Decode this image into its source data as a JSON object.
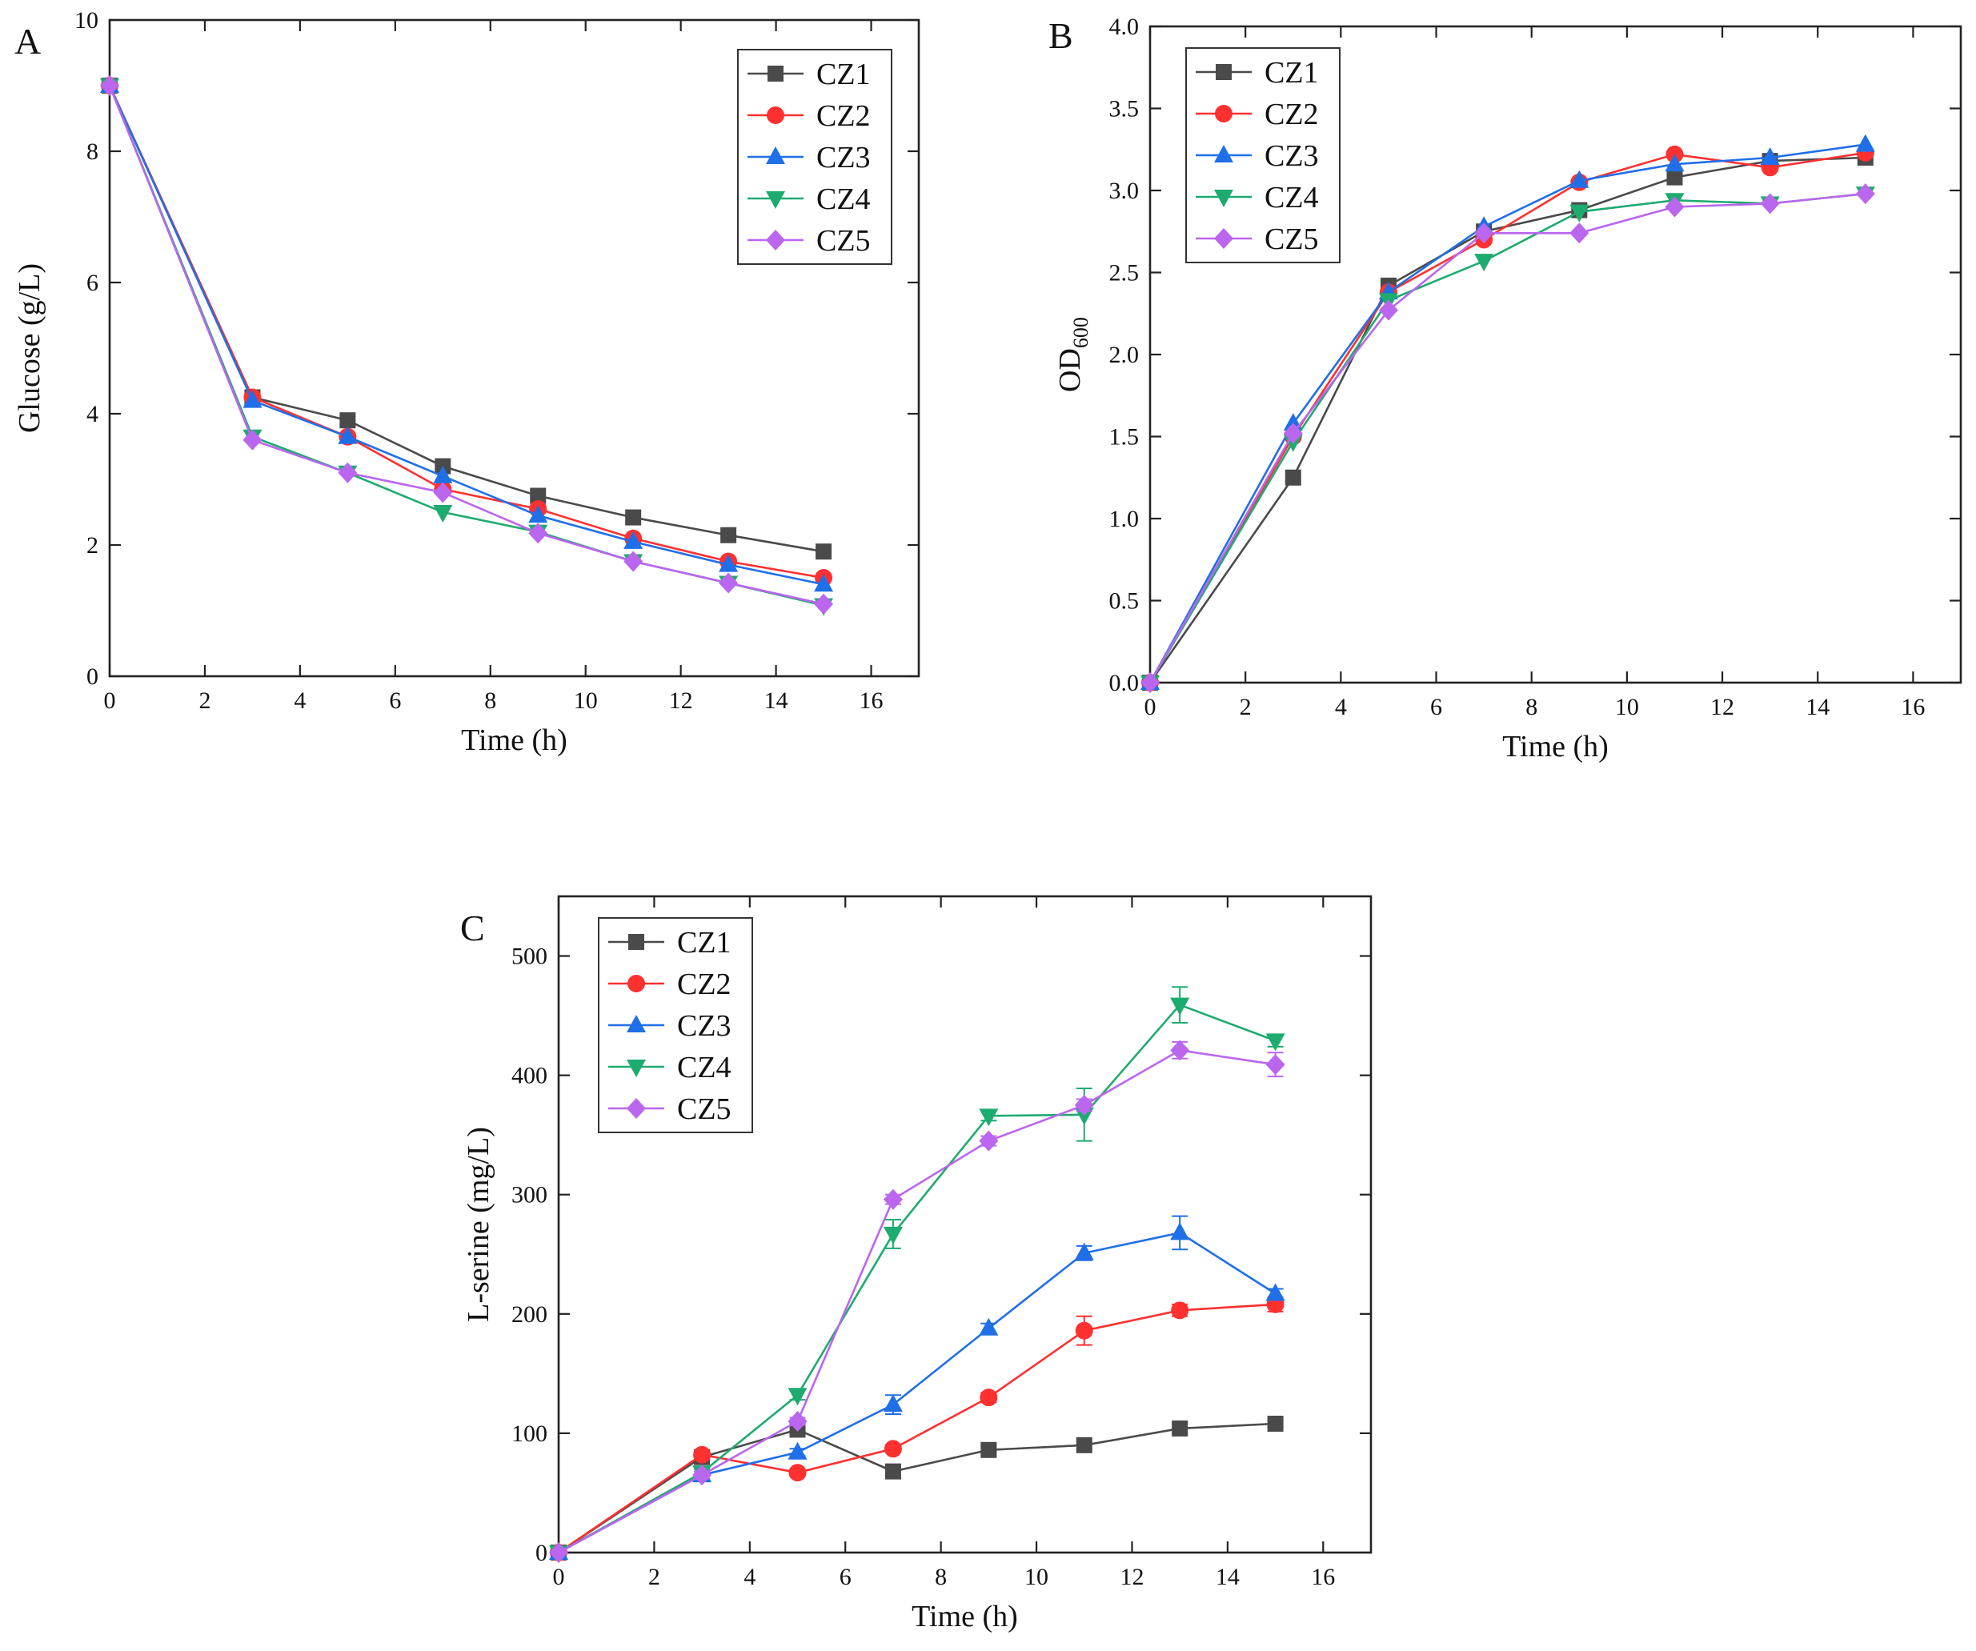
{
  "figure": {
    "colors": {
      "CZ1": "#4a4a4a",
      "CZ2": "#ff3030",
      "CZ3": "#1f6fe8",
      "CZ4": "#1eab70",
      "CZ5": "#bb66ee"
    },
    "markers": {
      "CZ1": "square",
      "CZ2": "circle",
      "CZ3": "triangle-up",
      "CZ4": "triangle-down",
      "CZ5": "diamond"
    }
  },
  "chart_data": [
    {
      "panel": "A",
      "type": "line",
      "xlabel": "Time (h)",
      "ylabel": "Glucose (g/L)",
      "xlim": [
        0,
        17
      ],
      "ylim": [
        0,
        10
      ],
      "xticks": [
        0,
        2,
        4,
        6,
        8,
        10,
        12,
        14,
        16
      ],
      "yticks": [
        0,
        2,
        4,
        6,
        8,
        10
      ],
      "ytick_labels": [
        "0",
        "2",
        "4",
        "6",
        "8",
        "10"
      ],
      "legend": "top-right",
      "x": [
        0,
        3,
        5,
        7,
        9,
        11,
        13,
        15
      ],
      "series": [
        {
          "name": "CZ1",
          "values": [
            9.0,
            4.25,
            3.9,
            3.2,
            2.75,
            2.42,
            2.15,
            1.9
          ]
        },
        {
          "name": "CZ2",
          "values": [
            9.0,
            4.25,
            3.65,
            2.85,
            2.55,
            2.1,
            1.75,
            1.5
          ]
        },
        {
          "name": "CZ3",
          "values": [
            9.0,
            4.2,
            3.65,
            3.05,
            2.45,
            2.05,
            1.7,
            1.4
          ]
        },
        {
          "name": "CZ4",
          "values": [
            9.0,
            3.65,
            3.1,
            2.5,
            2.2,
            1.75,
            1.42,
            1.08
          ]
        },
        {
          "name": "CZ5",
          "values": [
            9.0,
            3.6,
            3.1,
            2.8,
            2.18,
            1.75,
            1.42,
            1.1
          ]
        }
      ]
    },
    {
      "panel": "B",
      "type": "line",
      "xlabel": "Time (h)",
      "ylabel": "OD",
      "ylabel_subscript": "600",
      "xlim": [
        0,
        17
      ],
      "ylim": [
        0,
        4
      ],
      "xticks": [
        0,
        2,
        4,
        6,
        8,
        10,
        12,
        14,
        16
      ],
      "yticks": [
        0,
        0.5,
        1,
        1.5,
        2,
        2.5,
        3,
        3.5,
        4
      ],
      "ytick_labels": [
        "0.0",
        "0.5",
        "1.0",
        "1.5",
        "2.0",
        "2.5",
        "3.0",
        "3.5",
        "4.0"
      ],
      "legend": "top-left",
      "x": [
        0,
        3,
        5,
        7,
        9,
        11,
        13,
        15
      ],
      "series": [
        {
          "name": "CZ1",
          "values": [
            0,
            1.25,
            2.42,
            2.75,
            2.88,
            3.08,
            3.18,
            3.2
          ]
        },
        {
          "name": "CZ2",
          "values": [
            0,
            1.5,
            2.38,
            2.7,
            3.05,
            3.22,
            3.14,
            3.23
          ]
        },
        {
          "name": "CZ3",
          "values": [
            0,
            1.58,
            2.38,
            2.78,
            3.06,
            3.16,
            3.2,
            3.28
          ]
        },
        {
          "name": "CZ4",
          "values": [
            0,
            1.47,
            2.33,
            2.57,
            2.87,
            2.94,
            2.92,
            2.98
          ]
        },
        {
          "name": "CZ5",
          "values": [
            0,
            1.52,
            2.27,
            2.74,
            2.74,
            2.9,
            2.92,
            2.98
          ]
        }
      ]
    },
    {
      "panel": "C",
      "type": "line",
      "xlabel": "Time (h)",
      "ylabel": "L-serine (mg/L)",
      "xlim": [
        0,
        17
      ],
      "ylim": [
        0,
        550
      ],
      "xticks": [
        0,
        2,
        4,
        6,
        8,
        10,
        12,
        14,
        16
      ],
      "yticks": [
        0,
        100,
        200,
        300,
        400,
        500
      ],
      "ytick_labels": [
        "0",
        "100",
        "200",
        "300",
        "400",
        "500"
      ],
      "legend": "top-left",
      "x": [
        0,
        3,
        5,
        7,
        9,
        11,
        13,
        15
      ],
      "series": [
        {
          "name": "CZ1",
          "values": [
            0,
            80,
            103,
            68,
            86,
            90,
            104,
            108
          ],
          "errors": [
            0,
            3,
            3,
            3,
            3,
            3,
            4,
            3
          ]
        },
        {
          "name": "CZ2",
          "values": [
            0,
            82,
            67,
            87,
            130,
            186,
            203,
            208
          ],
          "errors": [
            0,
            3,
            3,
            3,
            4,
            12,
            5,
            6
          ]
        },
        {
          "name": "CZ3",
          "values": [
            0,
            65,
            84,
            124,
            188,
            251,
            268,
            217
          ],
          "errors": [
            0,
            3,
            3,
            8,
            4,
            6,
            14,
            4
          ]
        },
        {
          "name": "CZ4",
          "values": [
            0,
            67,
            132,
            267,
            366,
            367,
            459,
            429
          ],
          "errors": [
            0,
            3,
            4,
            12,
            4,
            22,
            15,
            5
          ]
        },
        {
          "name": "CZ5",
          "values": [
            0,
            65,
            110,
            296,
            345,
            375,
            421,
            409
          ],
          "errors": [
            0,
            3,
            3,
            4,
            4,
            5,
            7,
            10
          ]
        }
      ]
    }
  ]
}
